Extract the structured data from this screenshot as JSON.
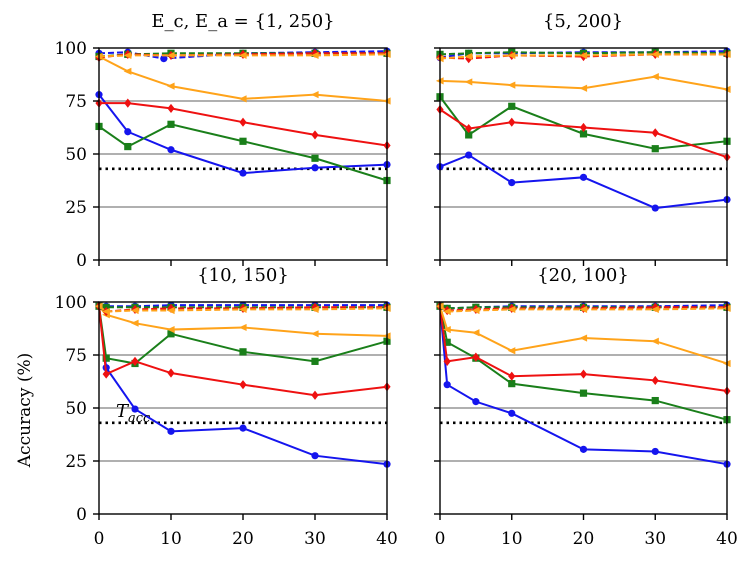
{
  "chart_data": {
    "type": "line",
    "ylabel": "Accuracy (%)",
    "threshold": {
      "label": "T_acc",
      "label_main": "T",
      "label_sub": "acc",
      "value": 43
    },
    "colors": {
      "blue": "#1515ee",
      "green": "#1a7f1a",
      "red": "#ee1111",
      "orange": "#ffa31a",
      "grid": "#b0b0b0"
    },
    "panels": [
      {
        "title": "E_c, E_a = {1, 250}",
        "x": [
          0,
          1,
          4,
          5,
          9,
          10,
          20,
          30,
          40
        ],
        "xlim": [
          0,
          40
        ],
        "ylim": [
          0,
          100
        ],
        "xticks": [
          0,
          10,
          20,
          30,
          40
        ],
        "yticks": [
          0,
          25,
          50,
          75,
          100
        ],
        "series": [
          {
            "name": "blue-solid",
            "style": "solid",
            "marker": "circle",
            "color": "blue",
            "x": [
              0,
              4,
              10,
              20,
              30,
              40
            ],
            "y": [
              78,
              60.5,
              52,
              41,
              43.5,
              45
            ]
          },
          {
            "name": "green-solid",
            "style": "solid",
            "marker": "square",
            "color": "green",
            "x": [
              0,
              4,
              10,
              20,
              30,
              40
            ],
            "y": [
              63,
              53.5,
              64,
              56,
              48,
              37.5
            ]
          },
          {
            "name": "red-solid",
            "style": "solid",
            "marker": "diamond",
            "color": "red",
            "x": [
              0,
              4,
              10,
              20,
              30,
              40
            ],
            "y": [
              74,
              74,
              71.5,
              65,
              59,
              54
            ]
          },
          {
            "name": "orange-solid",
            "style": "solid",
            "marker": "triangle",
            "color": "orange",
            "x": [
              0,
              4,
              10,
              20,
              30,
              40
            ],
            "y": [
              96,
              89,
              82,
              76,
              78,
              75
            ]
          },
          {
            "name": "blue-dashed",
            "style": "dashed",
            "marker": "circle",
            "color": "blue",
            "x": [
              0,
              4,
              9,
              20,
              30,
              40
            ],
            "y": [
              97.5,
              98,
              95,
              97.5,
              98,
              98.5
            ]
          },
          {
            "name": "green-dashed",
            "style": "dashed",
            "marker": "square",
            "color": "green",
            "x": [
              0,
              4,
              10,
              20,
              30,
              40
            ],
            "y": [
              96,
              97,
              97.5,
              97.5,
              97.5,
              97.5
            ]
          },
          {
            "name": "red-dashed",
            "style": "dashed",
            "marker": "diamond",
            "color": "red",
            "x": [
              0,
              4,
              10,
              20,
              30,
              40
            ],
            "y": [
              95.5,
              97,
              96.5,
              97,
              97.5,
              97.5
            ]
          },
          {
            "name": "orange-dashed",
            "style": "dashed",
            "marker": "triangle",
            "color": "orange",
            "x": [
              0,
              4,
              10,
              20,
              30,
              40
            ],
            "y": [
              96,
              96.5,
              96.5,
              96.5,
              96.5,
              97
            ]
          }
        ]
      },
      {
        "title": "{5, 200}",
        "xlim": [
          0,
          40
        ],
        "ylim": [
          0,
          100
        ],
        "xticks": [
          0,
          10,
          20,
          30,
          40
        ],
        "yticks": [
          0,
          25,
          50,
          75,
          100
        ],
        "series": [
          {
            "name": "blue-solid",
            "style": "solid",
            "marker": "circle",
            "color": "blue",
            "x": [
              0,
              4,
              10,
              20,
              30,
              40
            ],
            "y": [
              44,
              49.5,
              36.5,
              39,
              24.5,
              28.5
            ]
          },
          {
            "name": "green-solid",
            "style": "solid",
            "marker": "square",
            "color": "green",
            "x": [
              0,
              4,
              10,
              20,
              30,
              40
            ],
            "y": [
              77,
              59,
              72.5,
              59.5,
              52.5,
              56
            ]
          },
          {
            "name": "red-solid",
            "style": "solid",
            "marker": "diamond",
            "color": "red",
            "x": [
              0,
              4,
              10,
              20,
              30,
              40
            ],
            "y": [
              71,
              62,
              65,
              62.5,
              60,
              48.5
            ]
          },
          {
            "name": "orange-solid",
            "style": "solid",
            "marker": "triangle",
            "color": "orange",
            "x": [
              0,
              4,
              10,
              20,
              30,
              40
            ],
            "y": [
              84.5,
              84,
              82.5,
              81,
              86.5,
              80.5
            ]
          },
          {
            "name": "blue-dashed",
            "style": "dashed",
            "marker": "circle",
            "color": "blue",
            "x": [
              0,
              4,
              10,
              20,
              30,
              40
            ],
            "y": [
              95.5,
              97.5,
              97.5,
              98,
              98,
              98.5
            ]
          },
          {
            "name": "green-dashed",
            "style": "dashed",
            "marker": "square",
            "color": "green",
            "x": [
              0,
              4,
              10,
              20,
              30,
              40
            ],
            "y": [
              97,
              97.5,
              98,
              97.5,
              98,
              97.5
            ]
          },
          {
            "name": "red-dashed",
            "style": "dashed",
            "marker": "diamond",
            "color": "red",
            "x": [
              0,
              4,
              10,
              20,
              30,
              40
            ],
            "y": [
              95.5,
              95,
              96.5,
              96,
              97,
              97
            ]
          },
          {
            "name": "orange-dashed",
            "style": "dashed",
            "marker": "triangle",
            "color": "orange",
            "x": [
              0,
              4,
              10,
              20,
              30,
              40
            ],
            "y": [
              95,
              96,
              96.5,
              96.5,
              97,
              97
            ]
          }
        ]
      },
      {
        "title": "{10, 150}",
        "xlim": [
          0,
          40
        ],
        "ylim": [
          0,
          100
        ],
        "xticks": [
          0,
          10,
          20,
          30,
          40
        ],
        "yticks": [
          0,
          25,
          50,
          75,
          100
        ],
        "series": [
          {
            "name": "blue-solid",
            "style": "solid",
            "marker": "circle",
            "color": "blue",
            "x": [
              0,
              1,
              5,
              10,
              20,
              30,
              40
            ],
            "y": [
              98,
              69,
              49.5,
              39,
              40.5,
              27.5,
              23.5
            ]
          },
          {
            "name": "green-solid",
            "style": "solid",
            "marker": "square",
            "color": "green",
            "x": [
              0,
              1,
              5,
              10,
              20,
              30,
              40
            ],
            "y": [
              98,
              73.5,
              71,
              85,
              76.5,
              72,
              81.5
            ]
          },
          {
            "name": "red-solid",
            "style": "solid",
            "marker": "diamond",
            "color": "red",
            "x": [
              0,
              1,
              5,
              10,
              20,
              30,
              40
            ],
            "y": [
              98,
              66,
              72,
              66.5,
              61,
              56,
              60
            ]
          },
          {
            "name": "orange-solid",
            "style": "solid",
            "marker": "triangle",
            "color": "orange",
            "x": [
              0,
              1,
              5,
              10,
              20,
              30,
              40
            ],
            "y": [
              98,
              94,
              90,
              87,
              88,
              85,
              84
            ]
          },
          {
            "name": "blue-dashed",
            "style": "dashed",
            "marker": "circle",
            "color": "blue",
            "x": [
              0,
              1,
              5,
              10,
              20,
              30,
              40
            ],
            "y": [
              98,
              98,
              98,
              98.5,
              98.5,
              98.5,
              98.5
            ]
          },
          {
            "name": "green-dashed",
            "style": "dashed",
            "marker": "square",
            "color": "green",
            "x": [
              0,
              1,
              5,
              10,
              20,
              30,
              40
            ],
            "y": [
              98,
              97.5,
              97.5,
              97.5,
              97.5,
              97.5,
              97.5
            ]
          },
          {
            "name": "red-dashed",
            "style": "dashed",
            "marker": "diamond",
            "color": "red",
            "x": [
              0,
              1,
              5,
              10,
              20,
              30,
              40
            ],
            "y": [
              98,
              95.5,
              96.5,
              97,
              97,
              97.5,
              97.5
            ]
          },
          {
            "name": "orange-dashed",
            "style": "dashed",
            "marker": "triangle",
            "color": "orange",
            "x": [
              0,
              1,
              5,
              10,
              20,
              30,
              40
            ],
            "y": [
              98,
              95.5,
              96,
              96,
              96.5,
              96.5,
              97
            ]
          }
        ]
      },
      {
        "title": "{20, 100}",
        "xlim": [
          0,
          40
        ],
        "ylim": [
          0,
          100
        ],
        "xticks": [
          0,
          10,
          20,
          30,
          40
        ],
        "yticks": [
          0,
          25,
          50,
          75,
          100
        ],
        "series": [
          {
            "name": "blue-solid",
            "style": "solid",
            "marker": "circle",
            "color": "blue",
            "x": [
              0,
              1,
              5,
              10,
              20,
              30,
              40
            ],
            "y": [
              98,
              61,
              53,
              47.5,
              30.5,
              29.5,
              23.5
            ]
          },
          {
            "name": "green-solid",
            "style": "solid",
            "marker": "square",
            "color": "green",
            "x": [
              0,
              1,
              5,
              10,
              20,
              30,
              40
            ],
            "y": [
              98,
              81,
              73.5,
              61.5,
              57,
              53.5,
              44.5
            ]
          },
          {
            "name": "red-solid",
            "style": "solid",
            "marker": "diamond",
            "color": "red",
            "x": [
              0,
              1,
              5,
              10,
              20,
              30,
              40
            ],
            "y": [
              98,
              72,
              74,
              65,
              66,
              63,
              58
            ]
          },
          {
            "name": "orange-solid",
            "style": "solid",
            "marker": "triangle",
            "color": "orange",
            "x": [
              0,
              1,
              5,
              10,
              20,
              30,
              40
            ],
            "y": [
              98,
              87,
              85.5,
              77,
              83,
              81.5,
              71
            ]
          },
          {
            "name": "blue-dashed",
            "style": "dashed",
            "marker": "circle",
            "color": "blue",
            "x": [
              0,
              1,
              5,
              10,
              20,
              30,
              40
            ],
            "y": [
              98,
              97,
              97.5,
              98,
              98,
              98,
              98.5
            ]
          },
          {
            "name": "green-dashed",
            "style": "dashed",
            "marker": "square",
            "color": "green",
            "x": [
              0,
              1,
              5,
              10,
              20,
              30,
              40
            ],
            "y": [
              98,
              97,
              97.5,
              97.5,
              97.5,
              97.5,
              97.5
            ]
          },
          {
            "name": "red-dashed",
            "style": "dashed",
            "marker": "diamond",
            "color": "red",
            "x": [
              0,
              1,
              5,
              10,
              20,
              30,
              40
            ],
            "y": [
              98,
              96,
              96.5,
              97,
              97,
              97.5,
              97.5
            ]
          },
          {
            "name": "orange-dashed",
            "style": "dashed",
            "marker": "triangle",
            "color": "orange",
            "x": [
              0,
              1,
              5,
              10,
              20,
              30,
              40
            ],
            "y": [
              98,
              95.5,
              96,
              96.5,
              96.5,
              96.5,
              97
            ]
          }
        ]
      }
    ]
  }
}
